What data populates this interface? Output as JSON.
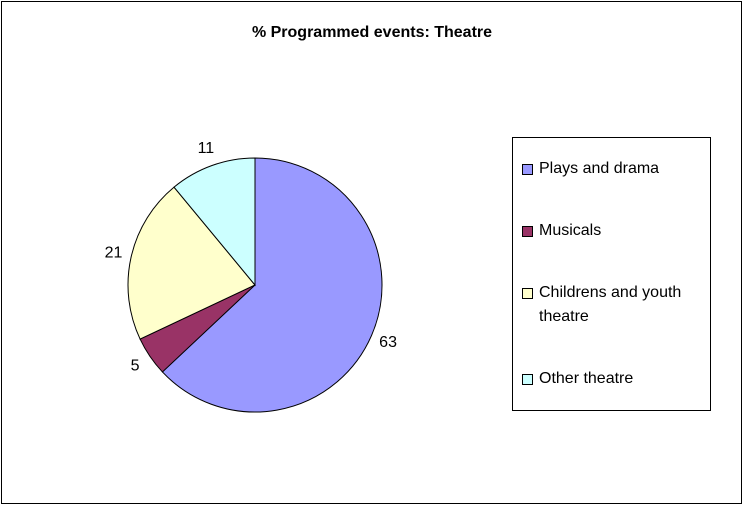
{
  "chart_data": {
    "type": "pie",
    "title": "% Programmed events: Theatre",
    "categories": [
      "Plays and drama",
      "Musicals",
      "Childrens and youth theatre",
      "Other theatre"
    ],
    "values": [
      63,
      5,
      21,
      11
    ],
    "colors": [
      "#9999ff",
      "#993366",
      "#ffffcc",
      "#ccffff"
    ]
  }
}
